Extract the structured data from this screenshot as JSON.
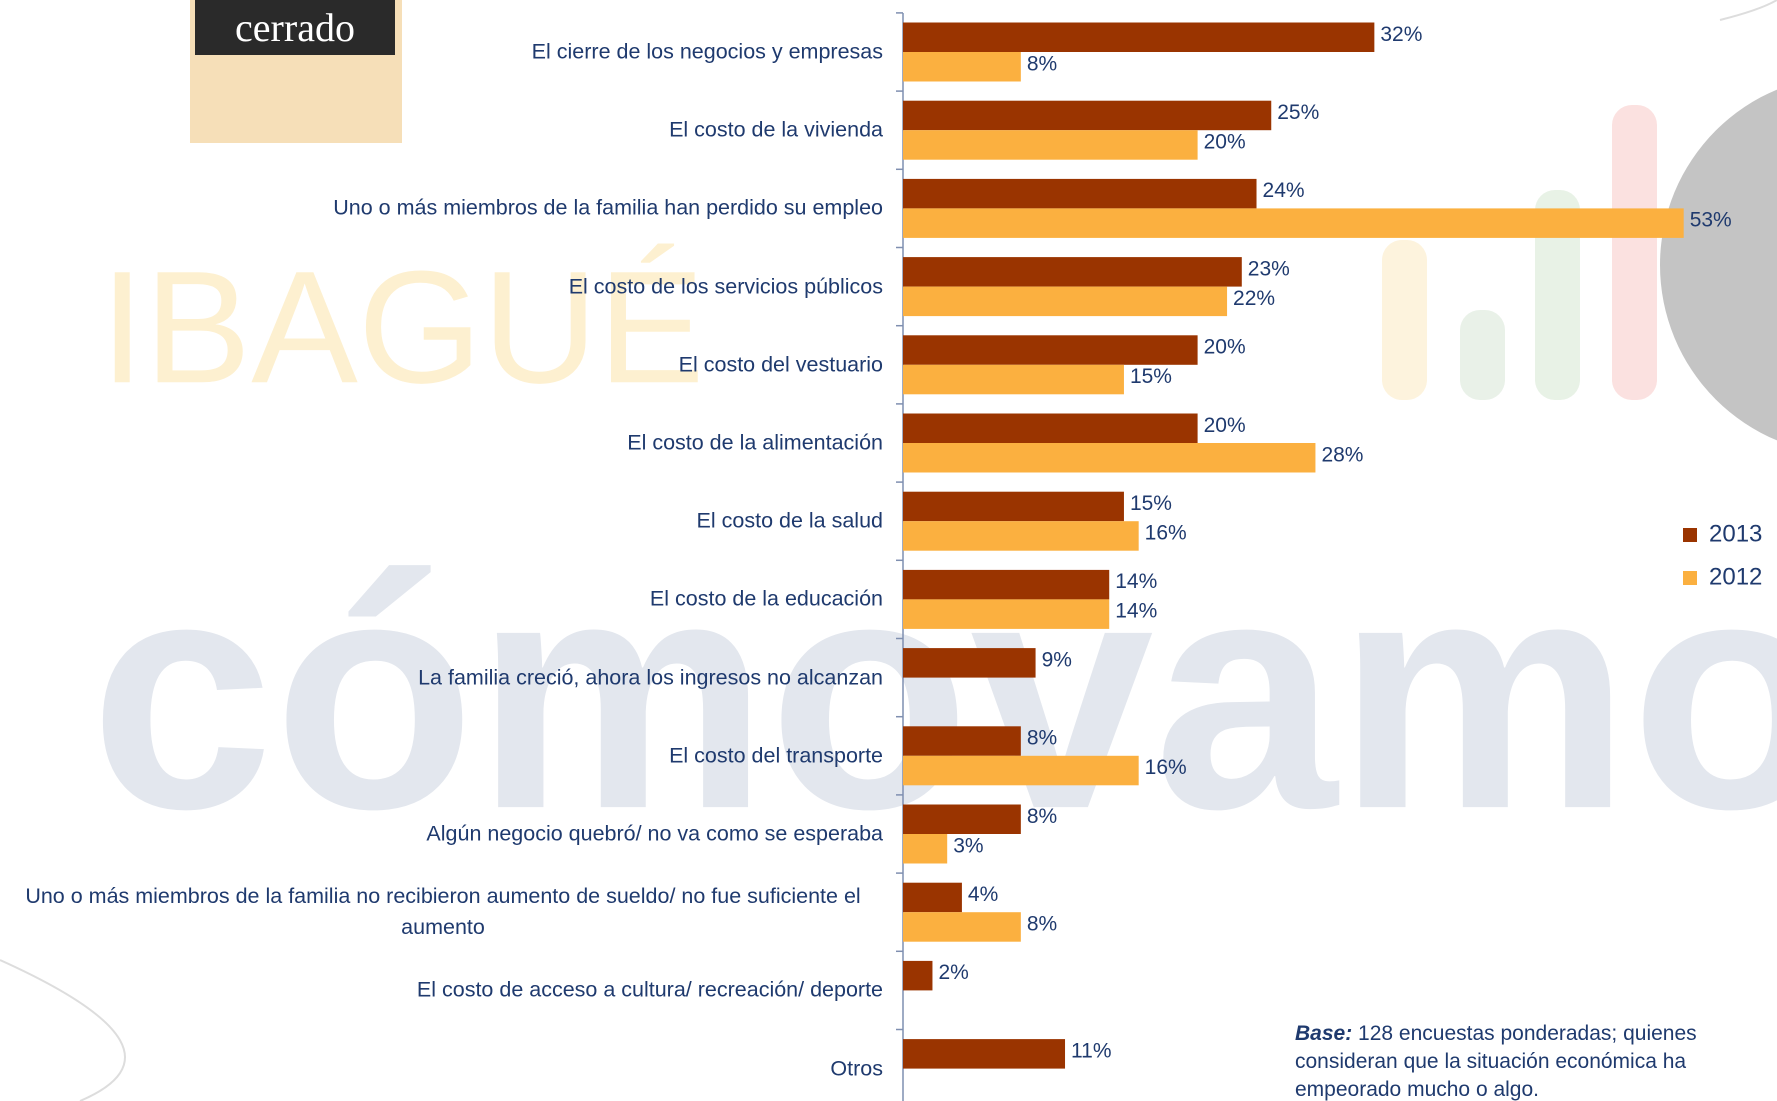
{
  "chart_data": {
    "type": "bar",
    "orientation": "horizontal",
    "categories": [
      "El cierre de los negocios y empresas",
      "El costo de la vivienda",
      "Uno o más miembros de la familia han perdido su empleo",
      "El costo de los servicios públicos",
      "El costo del vestuario",
      "El costo de la alimentación",
      "El costo de la salud",
      "El costo de la educación",
      "La familia creció, ahora los ingresos no alcanzan",
      "El costo del transporte",
      "Algún negocio quebró/ no va como se esperaba",
      "Uno o más miembros de la familia no recibieron aumento de sueldo/ no fue suficiente el aumento",
      "El costo de acceso a cultura/ recreación/ deporte",
      "Otros"
    ],
    "series": [
      {
        "name": "2013",
        "color": "#9a3400",
        "values": [
          32,
          25,
          24,
          23,
          20,
          20,
          15,
          14,
          9,
          8,
          8,
          4,
          2,
          11
        ],
        "value_labels": [
          "32%",
          "25%",
          "24%",
          "23%",
          "20%",
          "20%",
          "15%",
          "14%",
          "9%",
          "8%",
          "8%",
          "4%",
          "2%",
          "11%"
        ]
      },
      {
        "name": "2012",
        "color": "#fbb040",
        "values": [
          8,
          20,
          53,
          22,
          15,
          28,
          16,
          14,
          null,
          16,
          3,
          8,
          null,
          null
        ],
        "value_labels": [
          "8%",
          "20%",
          "53%",
          "22%",
          "15%",
          "28%",
          "16%",
          "14%",
          null,
          "16%",
          "3%",
          "8%",
          null,
          null
        ]
      }
    ],
    "legend": "right",
    "note_label": "Base:",
    "note_text": "128 encuestas ponderadas; quienes consideran que la situación económica ha empeorado mucho o algo.",
    "watermarks": {
      "logo": "cómovamos",
      "city": "IBAGUÉ",
      "sign": "cerrado"
    }
  }
}
